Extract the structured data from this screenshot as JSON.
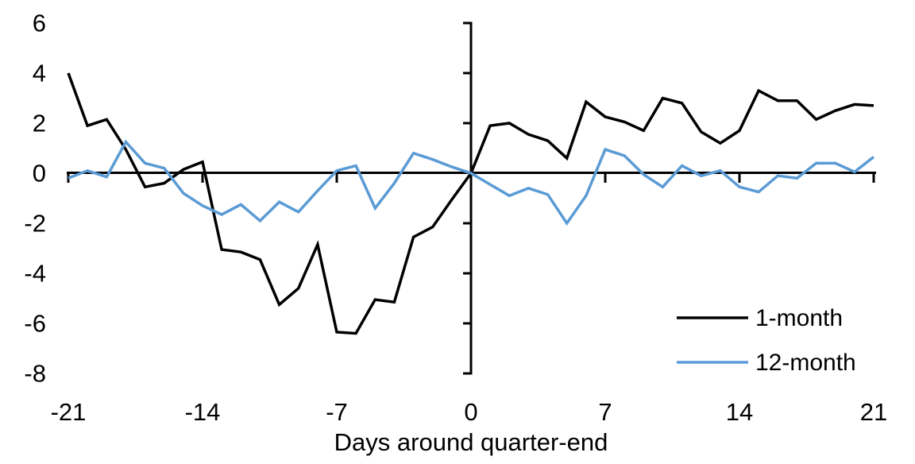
{
  "chart_data": {
    "type": "line",
    "xlabel": "Days around quarter-end",
    "xlim": [
      -21,
      21
    ],
    "ylim": [
      -8,
      6
    ],
    "xticks": [
      -21,
      -14,
      -7,
      0,
      7,
      14,
      21
    ],
    "yticks": [
      6,
      4,
      2,
      0,
      -2,
      -4,
      -6,
      -8
    ],
    "grid": false,
    "legend_position": "inside-bottom-right",
    "x": [
      -21,
      -20,
      -19,
      -18,
      -17,
      -16,
      -15,
      -14,
      -13,
      -12,
      -11,
      -10,
      -9,
      -8,
      -7,
      -6,
      -5,
      -4,
      -3,
      -2,
      -1,
      0,
      1,
      2,
      3,
      4,
      5,
      6,
      7,
      8,
      9,
      10,
      11,
      12,
      13,
      14,
      15,
      16,
      17,
      18,
      19,
      20,
      21
    ],
    "series": [
      {
        "name": "1-month",
        "color": "#000000",
        "values": [
          4.0,
          1.9,
          2.15,
          0.95,
          -0.55,
          -0.4,
          0.15,
          0.45,
          -3.05,
          -3.15,
          -3.45,
          -5.25,
          -4.6,
          -2.85,
          -6.35,
          -6.4,
          -5.05,
          -5.15,
          -2.55,
          -2.15,
          -1.05,
          0,
          1.9,
          2.0,
          1.55,
          1.3,
          0.6,
          2.85,
          2.25,
          2.05,
          1.7,
          3.0,
          2.8,
          1.65,
          1.2,
          1.7,
          3.3,
          2.9,
          2.9,
          2.15,
          2.5,
          2.75,
          2.7
        ]
      },
      {
        "name": "12-month",
        "color": "#5B9BD5",
        "values": [
          -0.2,
          0.1,
          -0.15,
          1.25,
          0.4,
          0.2,
          -0.8,
          -1.3,
          -1.65,
          -1.25,
          -1.9,
          -1.15,
          -1.55,
          -0.7,
          0.1,
          0.3,
          -1.4,
          -0.4,
          0.8,
          0.55,
          0.25,
          0,
          -0.45,
          -0.9,
          -0.6,
          -0.85,
          -2.0,
          -0.9,
          0.95,
          0.7,
          -0.05,
          -0.55,
          0.3,
          -0.1,
          0.1,
          -0.55,
          -0.75,
          -0.1,
          -0.2,
          0.4,
          0.4,
          0.05,
          0.65
        ]
      }
    ]
  }
}
